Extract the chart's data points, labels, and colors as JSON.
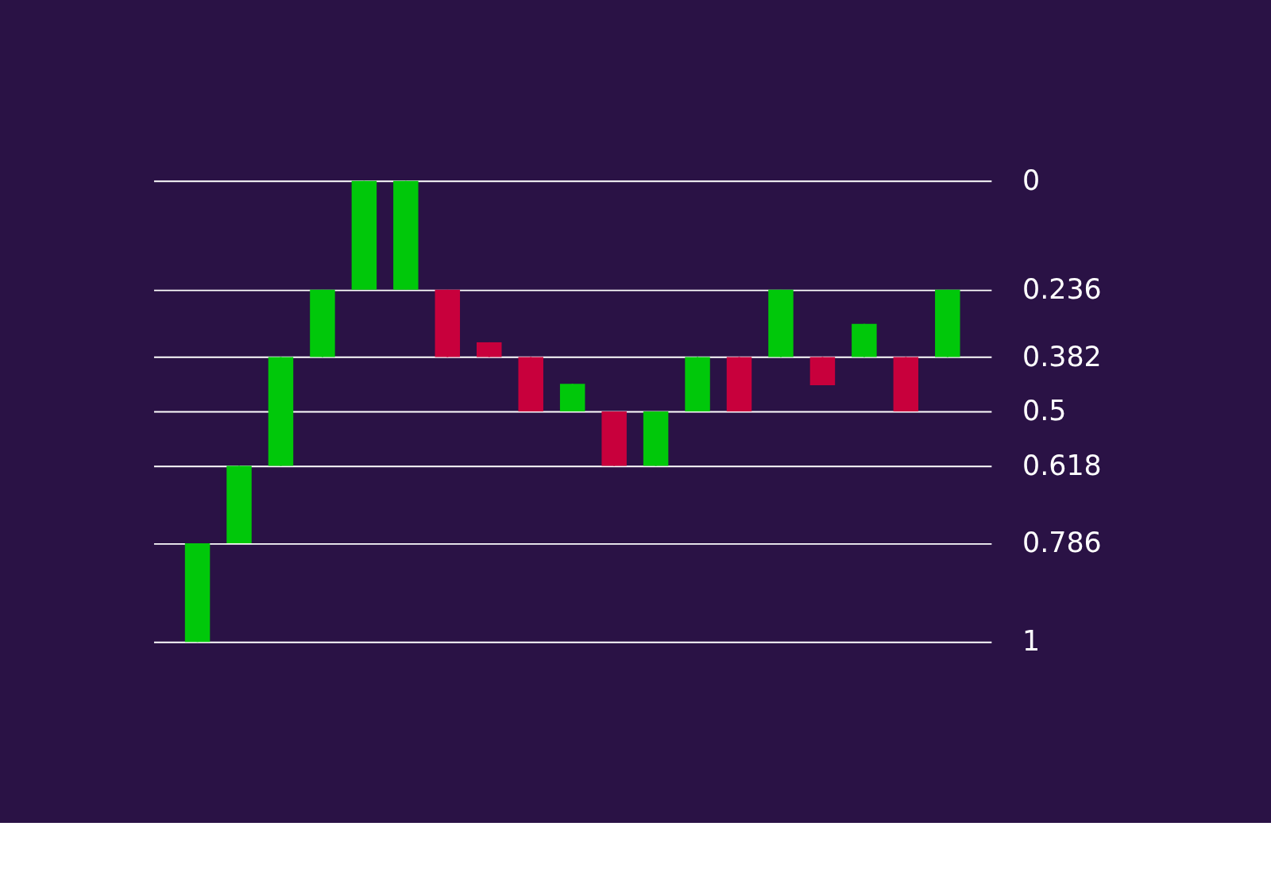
{
  "chart_data": {
    "type": "candlestick",
    "tick_labels": "y",
    "grid": "y",
    "ylim": [
      1,
      0
    ],
    "yticks": [
      0,
      0.236,
      0.382,
      0.5,
      0.618,
      0.786,
      1
    ],
    "categories": [
      null,
      null,
      null,
      null,
      null,
      null,
      null,
      null,
      null,
      null,
      null,
      null,
      null,
      null,
      null,
      null,
      null,
      null,
      null
    ],
    "ohlc": [
      [
        1,
        1,
        0.786,
        0.786
      ],
      [
        0.786,
        0.786,
        0.618,
        0.618
      ],
      [
        0.618,
        0.618,
        0.382,
        0.382
      ],
      [
        0.382,
        0.382,
        0.236,
        0.236
      ],
      [
        0.236,
        0.236,
        0,
        0
      ],
      [
        0.236,
        0.236,
        0,
        0
      ],
      [
        0.236,
        0.382,
        0.236,
        0.382
      ],
      [
        0.35,
        0.382,
        0.35,
        0.382
      ],
      [
        0.382,
        0.5,
        0.382,
        0.5
      ],
      [
        0.5,
        0.5,
        0.44,
        0.44
      ],
      [
        0.5,
        0.618,
        0.5,
        0.618
      ],
      [
        0.618,
        0.618,
        0.5,
        0.5
      ],
      [
        0.5,
        0.5,
        0.382,
        0.382
      ],
      [
        0.382,
        0.5,
        0.382,
        0.5
      ],
      [
        0.382,
        0.382,
        0.236,
        0.236
      ],
      [
        0.382,
        0.443,
        0.382,
        0.443
      ],
      [
        0.382,
        0.382,
        0.31,
        0.31
      ],
      [
        0.382,
        0.5,
        0.382,
        0.5
      ],
      [
        0.382,
        0.382,
        0.236,
        0.236
      ]
    ],
    "colors": [
      "#00c80a",
      "#00c80a",
      "#00c80a",
      "#00c80a",
      "#00c80a",
      "#00c80a",
      "#c8003c",
      "#c8003c",
      "#c8003c",
      "#00c80a",
      "#c8003c",
      "#00c80a",
      "#00c80a",
      "#c8003c",
      "#00c80a",
      "#c8003c",
      "#00c80a",
      "#c8003c",
      "#00c80a"
    ]
  }
}
